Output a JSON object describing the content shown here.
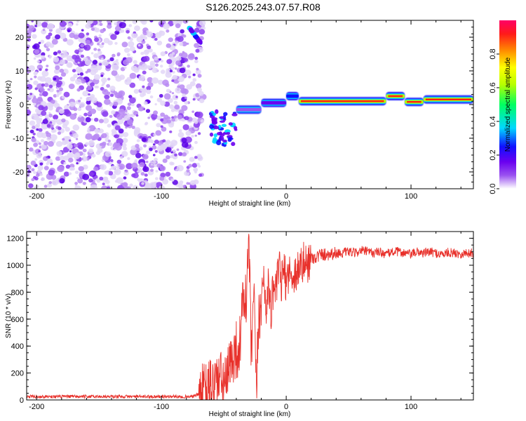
{
  "title": "S126.2025.243.07.57.R08",
  "colors": {
    "background": "#ffffff",
    "snr_line": "#e8302a",
    "colormap": [
      "#ffffff",
      "#d8c8f4",
      "#9a52f0",
      "#6a00f0",
      "#1010ff",
      "#00d8ff",
      "#00ff60",
      "#b8ff00",
      "#ffff00",
      "#ff8c00",
      "#ff1a1a",
      "#ff0066"
    ]
  },
  "chart_data": [
    {
      "type": "heatmap",
      "name": "spectrogram",
      "xlabel": "Height of straight line (km)",
      "ylabel": "Frequency (Hz)",
      "xlim": [
        -208,
        150
      ],
      "ylim": [
        -25,
        25
      ],
      "xticks": [
        "-200",
        "-100",
        "0",
        "100"
      ],
      "xtick_values": [
        -200,
        -100,
        0,
        100
      ],
      "yticks": [
        "20",
        "10",
        "0",
        "-10",
        "-20"
      ],
      "ytick_values": [
        20,
        10,
        0,
        -10,
        -20
      ],
      "signal_band": {
        "x_start": -40,
        "x_end": 150,
        "segments": [
          {
            "x": [
              -40,
              -20
            ],
            "freq": -1.5,
            "amplitude": 0.25
          },
          {
            "x": [
              -20,
              0
            ],
            "freq": 0.5,
            "amplitude": 0.4
          },
          {
            "x": [
              0,
              10
            ],
            "freq": 2.5,
            "amplitude": 0.5
          },
          {
            "x": [
              10,
              80
            ],
            "freq": 1.0,
            "amplitude": 0.95
          },
          {
            "x": [
              80,
              95
            ],
            "freq": 2.5,
            "amplitude": 0.95
          },
          {
            "x": [
              95,
              110
            ],
            "freq": 0.8,
            "amplitude": 0.9
          },
          {
            "x": [
              110,
              150
            ],
            "freq": 1.5,
            "amplitude": 0.95
          }
        ],
        "noise_region": {
          "x": [
            -208,
            -80
          ],
          "amplitude": 0.15
        },
        "features": [
          {
            "x": [
              -78,
              -68
            ],
            "freq": [
              18,
              23
            ],
            "amplitude": 0.35
          },
          {
            "x": [
              -60,
              -40
            ],
            "freq": [
              -12,
              -2
            ],
            "amplitude": 0.35
          }
        ]
      },
      "colorbar": {
        "label": "Normalized spectral amplitude",
        "range": [
          0,
          1
        ],
        "ticks": [
          "0.0",
          "0.2",
          "0.4",
          "0.6",
          "0.8"
        ],
        "tick_values": [
          0.0,
          0.2,
          0.4,
          0.6,
          0.8
        ]
      }
    },
    {
      "type": "line",
      "name": "snr",
      "xlabel": "Height of straight line (km)",
      "ylabel": "SNR (10 * v/v)",
      "xlim": [
        -208,
        150
      ],
      "ylim": [
        0,
        1250
      ],
      "xticks": [
        "-200",
        "-100",
        "0",
        "100"
      ],
      "xtick_values": [
        -200,
        -100,
        0,
        100
      ],
      "yticks": [
        "0",
        "200",
        "400",
        "600",
        "800",
        "1000",
        "1200"
      ],
      "ytick_values": [
        0,
        200,
        400,
        600,
        800,
        1000,
        1200
      ],
      "series": [
        {
          "name": "SNR",
          "x": [
            -208,
            -150,
            -100,
            -75,
            -65,
            -55,
            -48,
            -44,
            -40,
            -38,
            -36,
            -34,
            -32,
            -30,
            -28,
            -26,
            -24,
            -22,
            -20,
            -18,
            -16,
            -14,
            -12,
            -10,
            -8,
            -6,
            -4,
            -2,
            0,
            2,
            4,
            6,
            8,
            10,
            12,
            14,
            16,
            18,
            20,
            22,
            24,
            26,
            28,
            30,
            35,
            40,
            45,
            50,
            55,
            60,
            65,
            70,
            75,
            80,
            85,
            90,
            95,
            100,
            105,
            110,
            115,
            120,
            125,
            130,
            135,
            140,
            145,
            150
          ],
          "values": [
            25,
            25,
            25,
            25,
            60,
            160,
            120,
            300,
            380,
            350,
            550,
            800,
            700,
            1220,
            300,
            800,
            50,
            600,
            750,
            900,
            700,
            850,
            650,
            900,
            780,
            1000,
            860,
            960,
            880,
            960,
            900,
            950,
            930,
            1000,
            980,
            1020,
            1000,
            1040,
            1050,
            1060,
            1060,
            1070,
            1080,
            1080,
            1085,
            1090,
            1090,
            1100,
            1090,
            1110,
            1100,
            1090,
            1100,
            1080,
            1100,
            1100,
            1090,
            1080,
            1100,
            1090,
            1100,
            1090,
            1080,
            1095,
            1090,
            1085,
            1090,
            1090
          ]
        }
      ]
    }
  ]
}
